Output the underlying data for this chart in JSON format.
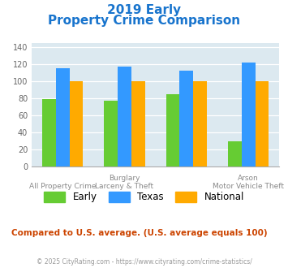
{
  "title_line1": "2019 Early",
  "title_line2": "Property Crime Comparison",
  "title_color": "#1874CD",
  "series": [
    "Early",
    "Texas",
    "National"
  ],
  "colors": [
    "#66cc33",
    "#3399ff",
    "#ffaa00"
  ],
  "values": [
    [
      79,
      115,
      100
    ],
    [
      77,
      117,
      100
    ],
    [
      85,
      112,
      100
    ],
    [
      29,
      122,
      100
    ]
  ],
  "top_labels": [
    "",
    "Burglary",
    "",
    "Arson"
  ],
  "bottom_labels": [
    "All Property Crime",
    "Larceny & Theft",
    "",
    "Motor Vehicle Theft"
  ],
  "ylim": [
    0,
    145
  ],
  "yticks": [
    0,
    20,
    40,
    60,
    80,
    100,
    120,
    140
  ],
  "bg_color": "#dce9f0",
  "footer_text": "Compared to U.S. average. (U.S. average equals 100)",
  "footer_color": "#cc4400",
  "credit_text": "© 2025 CityRating.com - https://www.cityrating.com/crime-statistics/",
  "credit_color": "#999999"
}
